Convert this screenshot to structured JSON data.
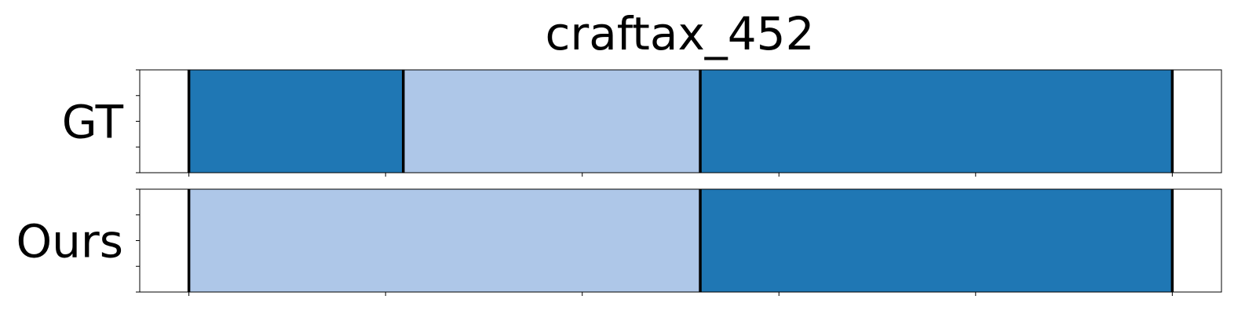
{
  "chart_data": {
    "type": "bar",
    "title": "craftax_452",
    "xlim": [
      -0.25,
      5.25
    ],
    "ylim": [
      0,
      4
    ],
    "rows": [
      {
        "label": "GT",
        "segments": [
          {
            "start": 0.0,
            "end": 1.09,
            "color": "#1f77b4"
          },
          {
            "start": 1.09,
            "end": 2.6,
            "color": "#aec7e8"
          },
          {
            "start": 2.6,
            "end": 5.0,
            "color": "#1f77b4"
          }
        ]
      },
      {
        "label": "Ours",
        "segments": [
          {
            "start": 0.0,
            "end": 2.6,
            "color": "#aec7e8"
          },
          {
            "start": 2.6,
            "end": 5.0,
            "color": "#1f77b4"
          }
        ]
      }
    ],
    "x_ticks": [
      0,
      1,
      2,
      3,
      4,
      5
    ],
    "y_ticks": [
      0,
      1,
      2,
      3,
      4
    ],
    "x_tick_labels_shown": false,
    "y_tick_labels_shown": false,
    "grid": false,
    "legend": "none"
  }
}
